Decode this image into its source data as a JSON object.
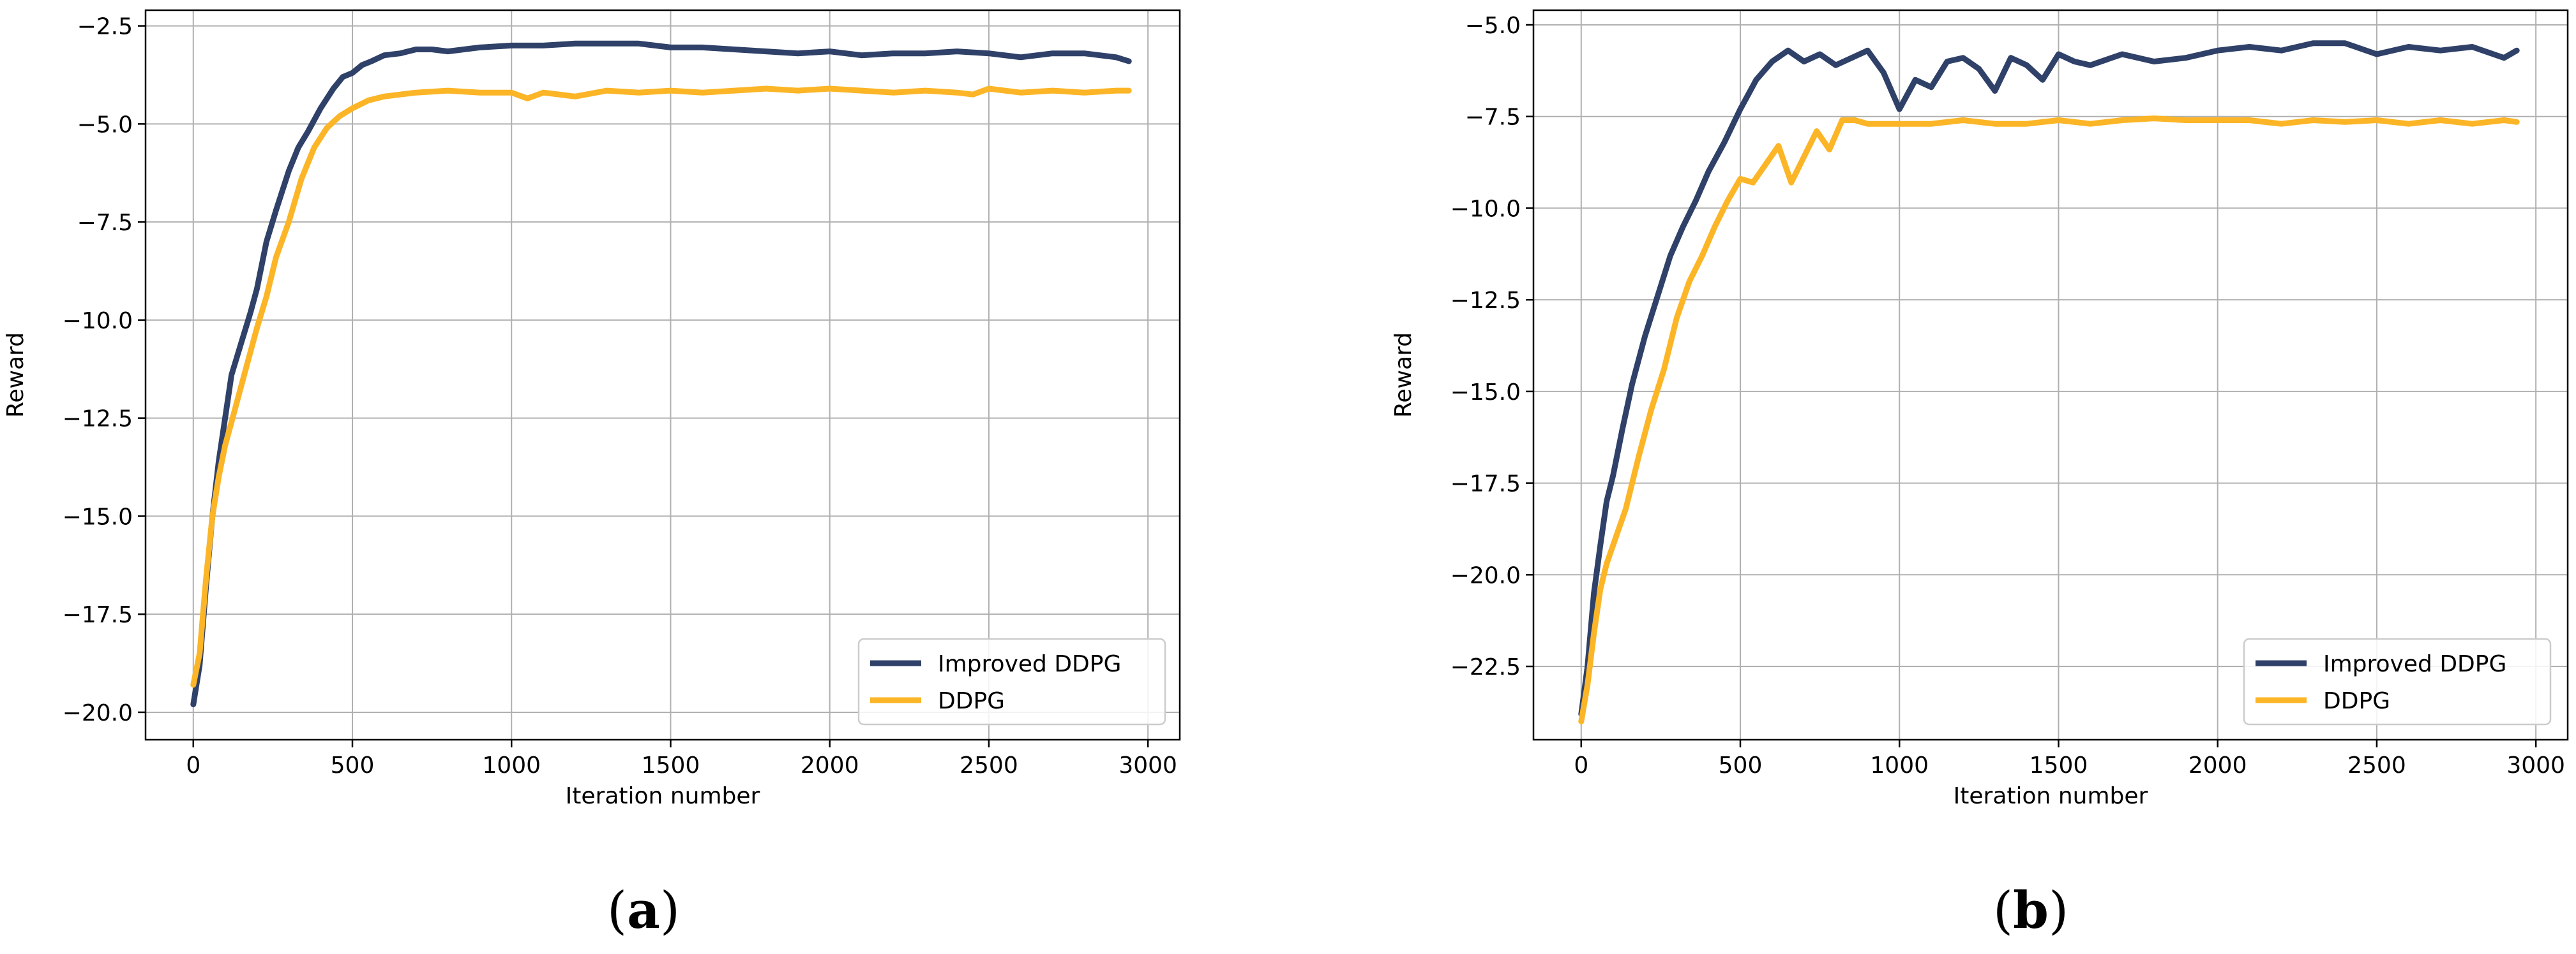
{
  "colors": {
    "improved": "#2f4168",
    "ddpg": "#fbb526",
    "grid": "#b0b0b0",
    "axis": "#000000",
    "legend_border": "#cccccc"
  },
  "captions": {
    "a_open": "(",
    "a_letter": "a",
    "a_close": ")",
    "b_open": "(",
    "b_letter": "b",
    "b_close": ")"
  },
  "chart_data": [
    {
      "type": "line",
      "xlabel": "Iteration number",
      "ylabel": "Reward",
      "xlim": [
        -150,
        3100
      ],
      "ylim": [
        -20.7,
        -2.1
      ],
      "xticks": [
        0,
        500,
        1000,
        1500,
        2000,
        2500,
        3000
      ],
      "xtick_labels": [
        "0",
        "500",
        "1000",
        "1500",
        "2000",
        "2500",
        "3000"
      ],
      "yticks": [
        -20.0,
        -17.5,
        -15.0,
        -12.5,
        -10.0,
        -7.5,
        -5.0,
        -2.5
      ],
      "ytick_labels": [
        "−20.0",
        "−17.5",
        "−15.0",
        "−12.5",
        "−10.0",
        "−7.5",
        "−5.0",
        "−2.5"
      ],
      "grid": true,
      "legend_position": "lower-right",
      "series": [
        {
          "name": "Improved DDPG",
          "color_key": "improved",
          "x": [
            0,
            20,
            40,
            60,
            80,
            100,
            120,
            150,
            180,
            200,
            230,
            260,
            300,
            330,
            360,
            400,
            440,
            470,
            500,
            530,
            560,
            600,
            650,
            700,
            750,
            800,
            850,
            900,
            1000,
            1100,
            1200,
            1300,
            1400,
            1500,
            1600,
            1700,
            1800,
            1900,
            2000,
            2100,
            2200,
            2300,
            2400,
            2500,
            2600,
            2700,
            2800,
            2900,
            2940
          ],
          "y": [
            -19.8,
            -18.8,
            -16.8,
            -15.0,
            -13.6,
            -12.5,
            -11.4,
            -10.6,
            -9.8,
            -9.2,
            -8.0,
            -7.2,
            -6.2,
            -5.6,
            -5.2,
            -4.6,
            -4.1,
            -3.8,
            -3.7,
            -3.5,
            -3.4,
            -3.25,
            -3.2,
            -3.1,
            -3.1,
            -3.15,
            -3.1,
            -3.05,
            -3.0,
            -3.0,
            -2.95,
            -2.95,
            -2.95,
            -3.05,
            -3.05,
            -3.1,
            -3.15,
            -3.2,
            -3.15,
            -3.25,
            -3.2,
            -3.2,
            -3.15,
            -3.2,
            -3.3,
            -3.2,
            -3.2,
            -3.3,
            -3.4
          ]
        },
        {
          "name": "DDPG",
          "color_key": "ddpg",
          "x": [
            0,
            20,
            40,
            60,
            80,
            100,
            130,
            160,
            200,
            230,
            260,
            300,
            340,
            380,
            420,
            460,
            500,
            550,
            600,
            650,
            700,
            800,
            900,
            1000,
            1050,
            1100,
            1200,
            1300,
            1400,
            1500,
            1600,
            1700,
            1800,
            1900,
            2000,
            2100,
            2200,
            2300,
            2400,
            2450,
            2500,
            2600,
            2700,
            2800,
            2900,
            2940
          ],
          "y": [
            -19.3,
            -18.5,
            -16.6,
            -15.0,
            -14.0,
            -13.2,
            -12.3,
            -11.4,
            -10.2,
            -9.4,
            -8.4,
            -7.5,
            -6.4,
            -5.6,
            -5.1,
            -4.8,
            -4.6,
            -4.4,
            -4.3,
            -4.25,
            -4.2,
            -4.15,
            -4.2,
            -4.2,
            -4.35,
            -4.2,
            -4.3,
            -4.15,
            -4.2,
            -4.15,
            -4.2,
            -4.15,
            -4.1,
            -4.15,
            -4.1,
            -4.15,
            -4.2,
            -4.15,
            -4.2,
            -4.25,
            -4.1,
            -4.2,
            -4.15,
            -4.2,
            -4.15,
            -4.15
          ]
        }
      ]
    },
    {
      "type": "line",
      "xlabel": "Iteration number",
      "ylabel": "Reward",
      "xlim": [
        -150,
        3100
      ],
      "ylim": [
        -24.5,
        -4.6
      ],
      "xticks": [
        0,
        500,
        1000,
        1500,
        2000,
        2500,
        3000
      ],
      "xtick_labels": [
        "0",
        "500",
        "1000",
        "1500",
        "2000",
        "2500",
        "3000"
      ],
      "yticks": [
        -22.5,
        -20.0,
        -17.5,
        -15.0,
        -12.5,
        -10.0,
        -7.5,
        -5.0
      ],
      "ytick_labels": [
        "−22.5",
        "−20.0",
        "−17.5",
        "−15.0",
        "−12.5",
        "−10.0",
        "−7.5",
        "−5.0"
      ],
      "grid": true,
      "legend_position": "lower-right",
      "series": [
        {
          "name": "Improved DDPG",
          "color_key": "improved",
          "x": [
            0,
            20,
            40,
            60,
            80,
            100,
            130,
            160,
            200,
            240,
            280,
            320,
            360,
            400,
            450,
            500,
            550,
            600,
            650,
            700,
            750,
            800,
            850,
            900,
            950,
            1000,
            1050,
            1100,
            1150,
            1200,
            1250,
            1300,
            1350,
            1400,
            1450,
            1500,
            1550,
            1600,
            1700,
            1800,
            1900,
            2000,
            2100,
            2200,
            2300,
            2400,
            2500,
            2600,
            2700,
            2800,
            2900,
            2940
          ],
          "y": [
            -23.8,
            -22.5,
            -20.5,
            -19.2,
            -18.0,
            -17.3,
            -16.0,
            -14.8,
            -13.5,
            -12.4,
            -11.3,
            -10.5,
            -9.8,
            -9.0,
            -8.2,
            -7.3,
            -6.5,
            -6.0,
            -5.7,
            -6.0,
            -5.8,
            -6.1,
            -5.9,
            -5.7,
            -6.3,
            -7.3,
            -6.5,
            -6.7,
            -6.0,
            -5.9,
            -6.2,
            -6.8,
            -5.9,
            -6.1,
            -6.5,
            -5.8,
            -6.0,
            -6.1,
            -5.8,
            -6.0,
            -5.9,
            -5.7,
            -5.6,
            -5.7,
            -5.5,
            -5.5,
            -5.8,
            -5.6,
            -5.7,
            -5.6,
            -5.9,
            -5.7
          ]
        },
        {
          "name": "DDPG",
          "color_key": "ddpg",
          "x": [
            0,
            20,
            40,
            60,
            80,
            100,
            140,
            180,
            220,
            260,
            300,
            340,
            380,
            420,
            460,
            500,
            540,
            580,
            620,
            660,
            700,
            740,
            780,
            820,
            860,
            900,
            1000,
            1100,
            1200,
            1300,
            1400,
            1500,
            1600,
            1700,
            1800,
            1900,
            2000,
            2100,
            2200,
            2300,
            2400,
            2500,
            2600,
            2700,
            2800,
            2900,
            2940
          ],
          "y": [
            -24.0,
            -23.0,
            -21.6,
            -20.4,
            -19.7,
            -19.2,
            -18.2,
            -16.8,
            -15.5,
            -14.4,
            -13.0,
            -12.0,
            -11.3,
            -10.5,
            -9.8,
            -9.2,
            -9.3,
            -8.8,
            -8.3,
            -9.3,
            -8.6,
            -7.9,
            -8.4,
            -7.6,
            -7.6,
            -7.7,
            -7.7,
            -7.7,
            -7.6,
            -7.7,
            -7.7,
            -7.6,
            -7.7,
            -7.6,
            -7.55,
            -7.6,
            -7.6,
            -7.6,
            -7.7,
            -7.6,
            -7.65,
            -7.6,
            -7.7,
            -7.6,
            -7.7,
            -7.6,
            -7.65
          ]
        }
      ]
    }
  ]
}
